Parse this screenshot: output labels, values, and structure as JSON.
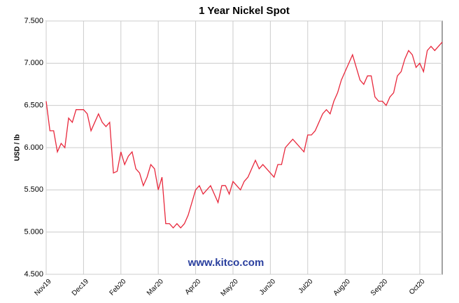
{
  "chart_data": {
    "type": "line",
    "title": "1 Year Nickel Spot",
    "y_label": "USD / lb",
    "watermark": "www.kitco.com",
    "series": [
      {
        "color": "#e8283c",
        "values": [
          6.55,
          6.2,
          6.2,
          5.95,
          6.05,
          6.0,
          6.35,
          6.3,
          6.45,
          6.45,
          6.45,
          6.4,
          6.2,
          6.3,
          6.4,
          6.3,
          6.25,
          6.3,
          5.7,
          5.72,
          5.95,
          5.8,
          5.9,
          5.95,
          5.75,
          5.7,
          5.55,
          5.65,
          5.8,
          5.75,
          5.5,
          5.65,
          5.1,
          5.1,
          5.05,
          5.1,
          5.05,
          5.1,
          5.2,
          5.35,
          5.5,
          5.55,
          5.45,
          5.5,
          5.55,
          5.45,
          5.35,
          5.55,
          5.55,
          5.45,
          5.6,
          5.55,
          5.5,
          5.6,
          5.65,
          5.75,
          5.85,
          5.75,
          5.8,
          5.75,
          5.7,
          5.65,
          5.8,
          5.8,
          6.0,
          6.05,
          6.1,
          6.05,
          6.0,
          5.95,
          6.15,
          6.15,
          6.2,
          6.3,
          6.4,
          6.45,
          6.4,
          6.55,
          6.65,
          6.8,
          6.9,
          7.0,
          7.1,
          6.95,
          6.8,
          6.75,
          6.85,
          6.85,
          6.6,
          6.55,
          6.55,
          6.5,
          6.6,
          6.65,
          6.85,
          6.9,
          7.05,
          7.15,
          7.1,
          6.95,
          7.0,
          6.9,
          7.15,
          7.2,
          7.15,
          7.2,
          7.25
        ]
      }
    ],
    "xlim": [
      0,
      106
    ],
    "xticks": [
      {
        "value": 0,
        "label": "Nov19"
      },
      {
        "value": 10,
        "label": "Dec19"
      },
      {
        "value": 20,
        "label": "Feb20"
      },
      {
        "value": 30,
        "label": "Mar20"
      },
      {
        "value": 40,
        "label": "Apr20"
      },
      {
        "value": 50,
        "label": "May20"
      },
      {
        "value": 60,
        "label": "Jun20"
      },
      {
        "value": 70,
        "label": "Jul20"
      },
      {
        "value": 80,
        "label": "Aug20"
      },
      {
        "value": 90,
        "label": "Sep20"
      },
      {
        "value": 100,
        "label": "Oct20"
      }
    ],
    "ylim": [
      4.5,
      7.5
    ],
    "yticks": [
      {
        "value": 4.5,
        "label": "4.500"
      },
      {
        "value": 5,
        "label": "5.000"
      },
      {
        "value": 5.5,
        "label": "5.500"
      },
      {
        "value": 6,
        "label": "6.000"
      },
      {
        "value": 6.5,
        "label": "6.500"
      },
      {
        "value": 7,
        "label": "7.000"
      },
      {
        "value": 7.5,
        "label": "7.500"
      }
    ],
    "grid": true
  }
}
